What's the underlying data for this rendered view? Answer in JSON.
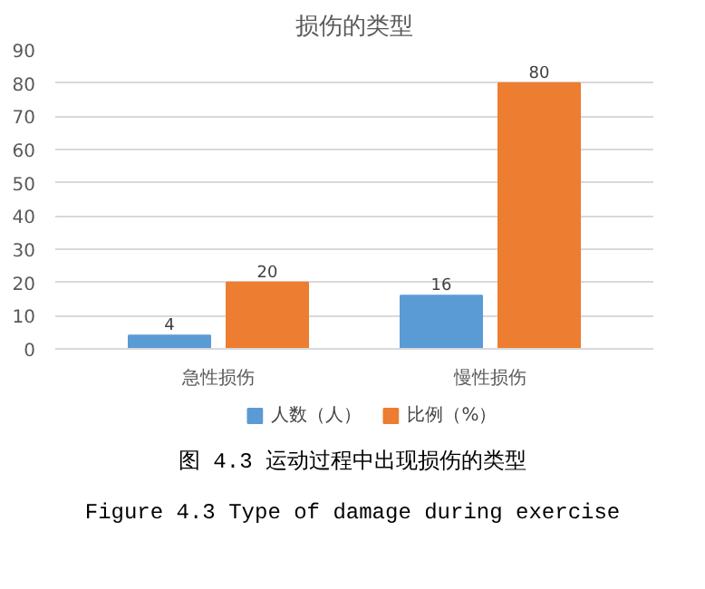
{
  "chart_data": {
    "type": "bar",
    "title": "损伤的类型",
    "categories": [
      "急性损伤",
      "慢性损伤"
    ],
    "series": [
      {
        "name": "人数（人）",
        "color": "#5b9bd5",
        "values": [
          4,
          16
        ]
      },
      {
        "name": "比例（%）",
        "color": "#ed7d31",
        "values": [
          20,
          80
        ]
      }
    ],
    "ylim": [
      0,
      90
    ],
    "yticks": [
      0,
      10,
      20,
      30,
      40,
      50,
      60,
      70,
      80,
      90
    ],
    "grid": "y",
    "legend": "bottom",
    "data_labels": true,
    "annotations": [
      "图 4.3 运动过程中出现损伤的类型",
      "Figure 4.3 Type of damage during exercise"
    ]
  }
}
